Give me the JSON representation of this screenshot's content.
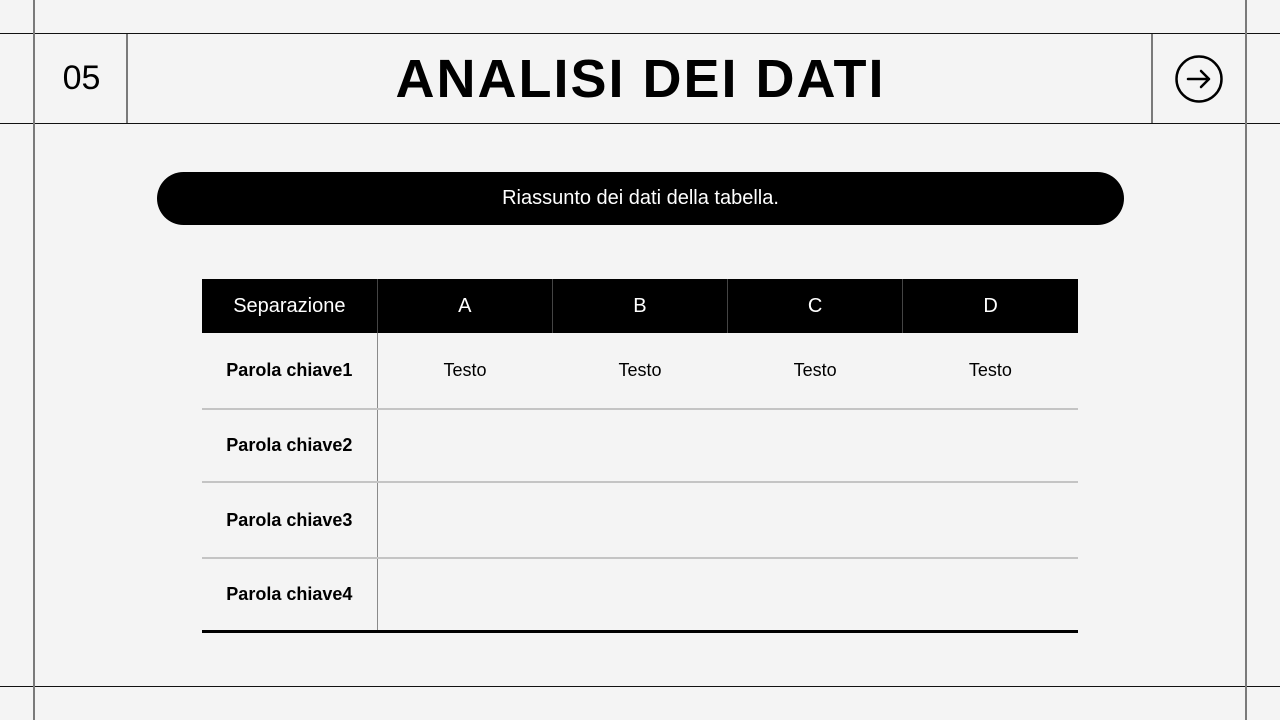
{
  "header": {
    "number": "05",
    "title": "ANALISI DEI DATI",
    "next_icon": "arrow-right-circle-icon"
  },
  "banner": {
    "text": "Riassunto dei dati della tabella."
  },
  "table": {
    "headers": [
      "Separazione",
      "A",
      "B",
      "C",
      "D"
    ],
    "rows": [
      {
        "key": "Parola chiave1",
        "cells": [
          "Testo",
          "Testo",
          "Testo",
          "Testo"
        ]
      },
      {
        "key": "Parola chiave2",
        "cells": [
          "",
          "",
          "",
          ""
        ]
      },
      {
        "key": "Parola chiave3",
        "cells": [
          "",
          "",
          "",
          ""
        ]
      },
      {
        "key": "Parola chiave4",
        "cells": [
          "",
          "",
          "",
          ""
        ]
      }
    ]
  }
}
